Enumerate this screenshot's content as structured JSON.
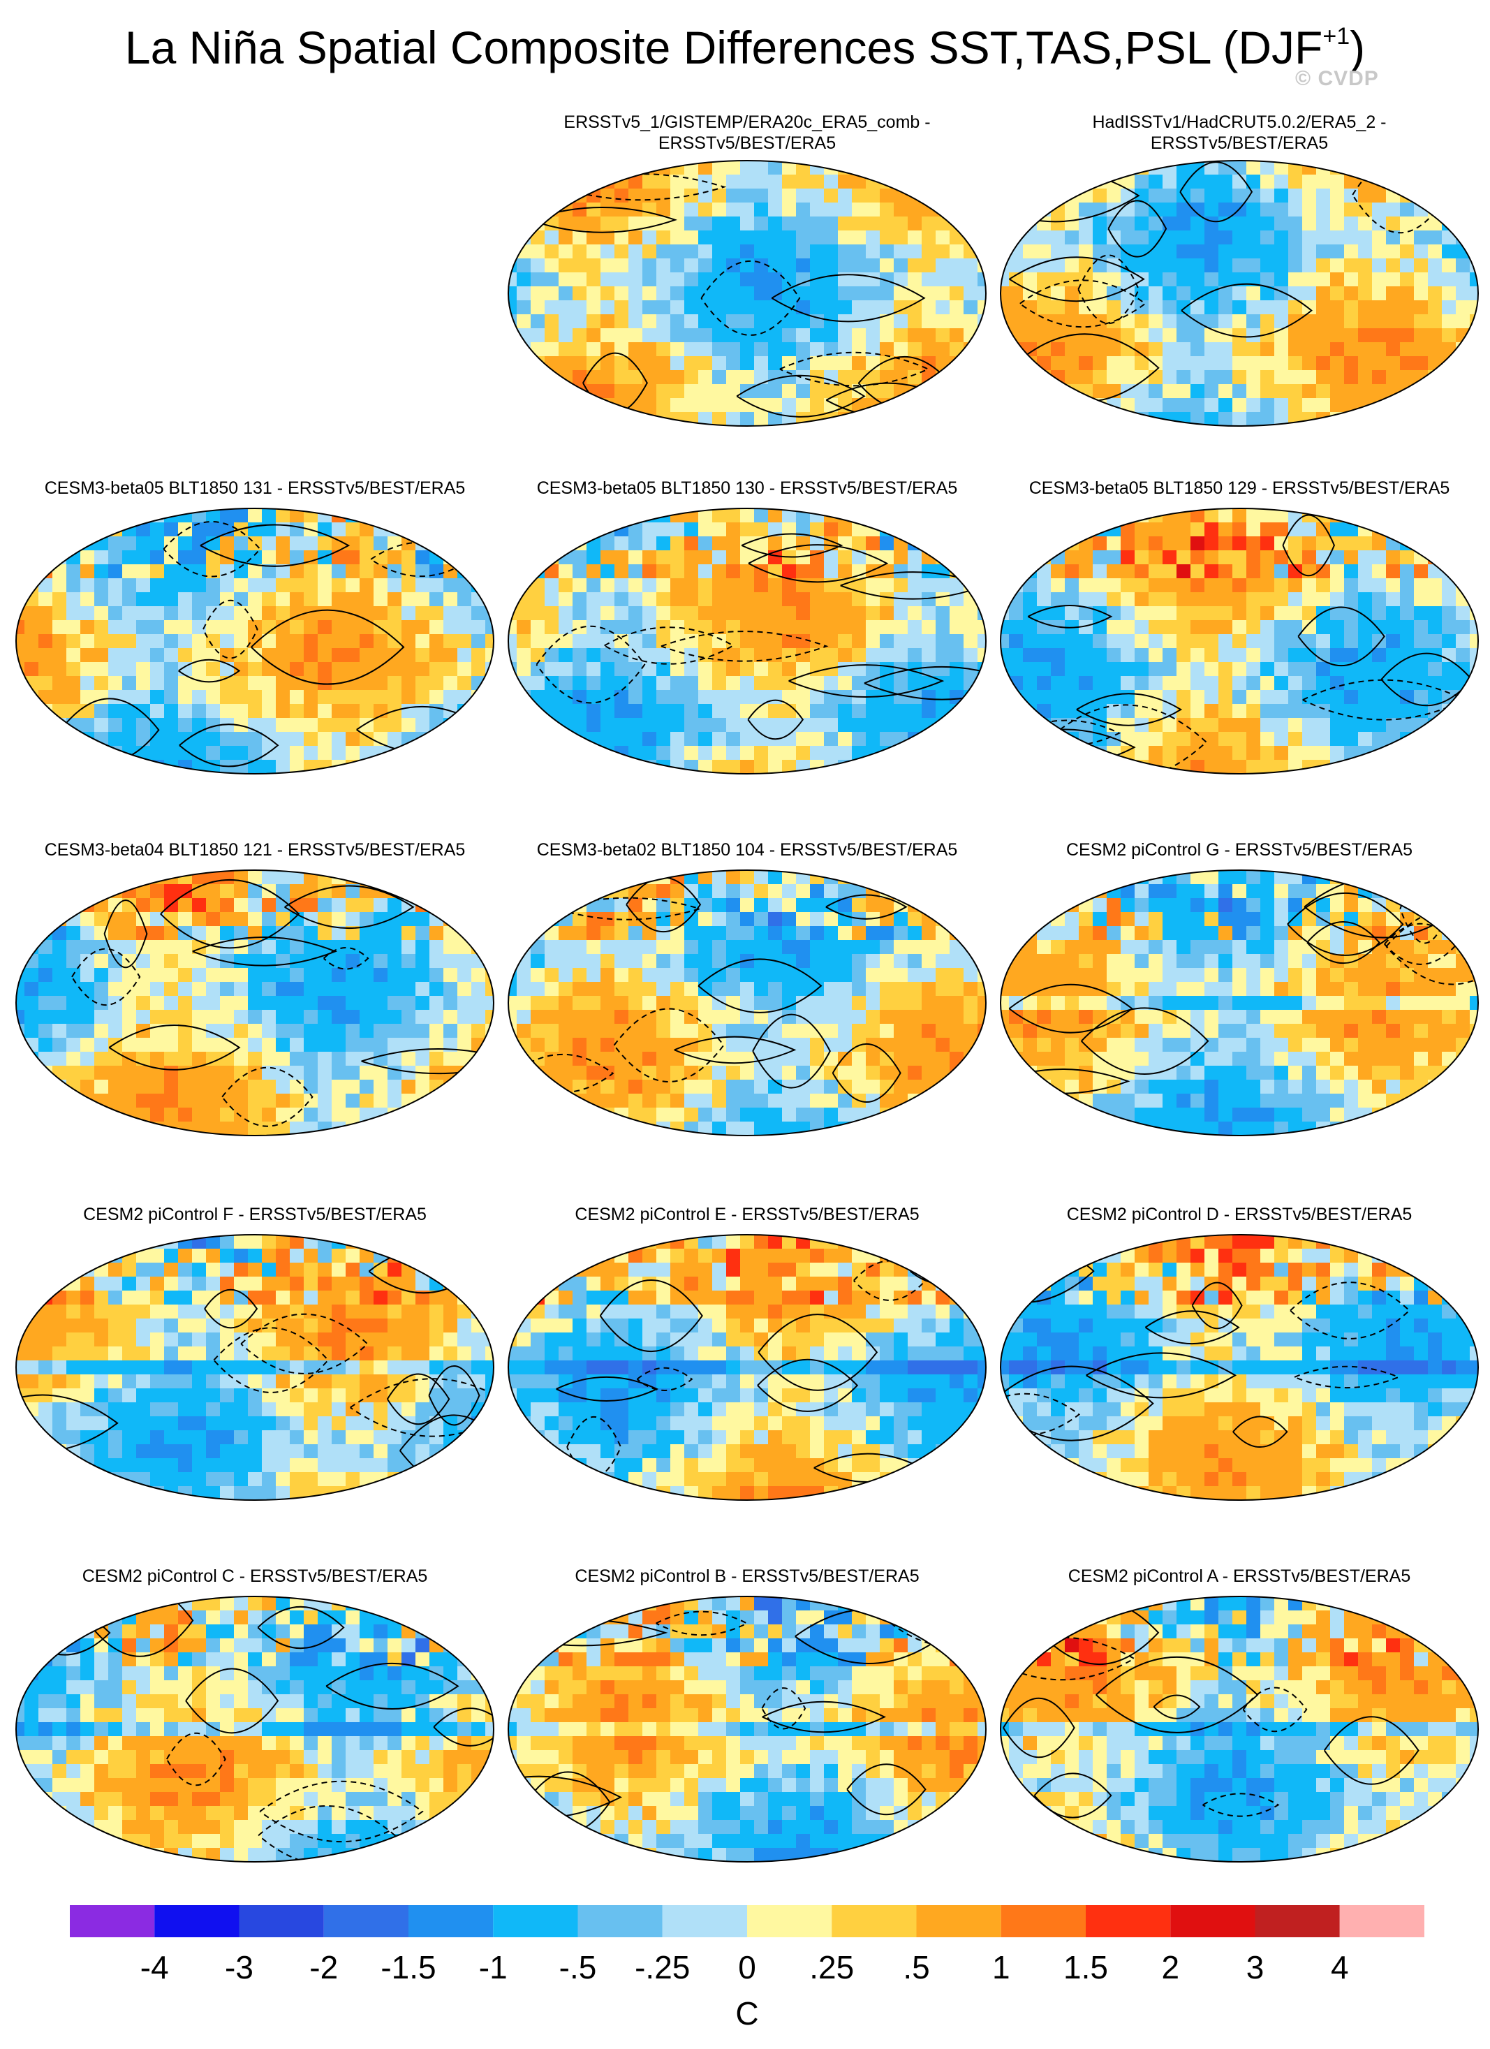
{
  "title": "La Niña Spatial Composite Differences SST,TAS,PSL (DJF",
  "title_sup": "+1",
  "title_close": ")",
  "watermark": "© CVDP",
  "panels": [
    {
      "label_lines": [
        "ERSSTv5_1/GISTEMP/ERA20c_ERA5_comb -",
        "ERSSTv5/BEST/ERA5"
      ]
    },
    {
      "label_lines": [
        "HadISSTv1/HadCRUT5.0.2/ERA5_2 -",
        "ERSSTv5/BEST/ERA5"
      ]
    },
    {
      "label_lines": [
        "CESM3-beta05 BLT1850 131 - ERSSTv5/BEST/ERA5"
      ]
    },
    {
      "label_lines": [
        "CESM3-beta05 BLT1850 130 - ERSSTv5/BEST/ERA5"
      ]
    },
    {
      "label_lines": [
        "CESM3-beta05 BLT1850 129 - ERSSTv5/BEST/ERA5"
      ]
    },
    {
      "label_lines": [
        "CESM3-beta04 BLT1850 121 - ERSSTv5/BEST/ERA5"
      ]
    },
    {
      "label_lines": [
        "CESM3-beta02 BLT1850 104 - ERSSTv5/BEST/ERA5"
      ]
    },
    {
      "label_lines": [
        "CESM2 piControl G - ERSSTv5/BEST/ERA5"
      ]
    },
    {
      "label_lines": [
        "CESM2 piControl F - ERSSTv5/BEST/ERA5"
      ]
    },
    {
      "label_lines": [
        "CESM2 piControl E - ERSSTv5/BEST/ERA5"
      ]
    },
    {
      "label_lines": [
        "CESM2 piControl D - ERSSTv5/BEST/ERA5"
      ]
    },
    {
      "label_lines": [
        "CESM2 piControl C - ERSSTv5/BEST/ERA5"
      ]
    },
    {
      "label_lines": [
        "CESM2 piControl B - ERSSTv5/BEST/ERA5"
      ]
    },
    {
      "label_lines": [
        "CESM2 piControl A - ERSSTv5/BEST/ERA5"
      ]
    }
  ],
  "colorbar": {
    "tick_labels": [
      "-4",
      "-3",
      "-2",
      "-1.5",
      "-1",
      "-.5",
      "-.25",
      "0",
      ".25",
      ".5",
      "1",
      "1.5",
      "2",
      "3",
      "4"
    ],
    "colors": [
      "#8b2be2",
      "#1010f0",
      "#2848e0",
      "#3070e8",
      "#2090f0",
      "#10b8f8",
      "#68c0f0",
      "#b0e0f8",
      "#fff8a0",
      "#ffd040",
      "#ffa820",
      "#ff7818",
      "#ff3010",
      "#e01010",
      "#c02020",
      "#ffb0b0"
    ],
    "units": "C"
  },
  "chart_data": {
    "type": "heatmap",
    "title": "La Niña Spatial Composite Differences SST,TAS,PSL (DJF+1)",
    "fields": [
      "SST",
      "TAS",
      "PSL"
    ],
    "season": "DJF+1",
    "projection": "global map (Robinson-like)",
    "reference": "ERSSTv5/BEST/ERA5",
    "panels": [
      "ERSSTv5_1/GISTEMP/ERA20c_ERA5_comb - ERSSTv5/BEST/ERA5",
      "HadISSTv1/HadCRUT5.0.2/ERA5_2 - ERSSTv5/BEST/ERA5",
      "CESM3-beta05 BLT1850 131 - ERSSTv5/BEST/ERA5",
      "CESM3-beta05 BLT1850 130 - ERSSTv5/BEST/ERA5",
      "CESM3-beta05 BLT1850 129 - ERSSTv5/BEST/ERA5",
      "CESM3-beta04 BLT1850 121 - ERSSTv5/BEST/ERA5",
      "CESM3-beta02 BLT1850 104 - ERSSTv5/BEST/ERA5",
      "CESM2 piControl G - ERSSTv5/BEST/ERA5",
      "CESM2 piControl F - ERSSTv5/BEST/ERA5",
      "CESM2 piControl E - ERSSTv5/BEST/ERA5",
      "CESM2 piControl D - ERSSTv5/BEST/ERA5",
      "CESM2 piControl C - ERSSTv5/BEST/ERA5",
      "CESM2 piControl B - ERSSTv5/BEST/ERA5",
      "CESM2 piControl A - ERSSTv5/BEST/ERA5"
    ],
    "color_levels": [
      -4,
      -3,
      -2,
      -1.5,
      -1,
      -0.5,
      -0.25,
      0,
      0.25,
      0.5,
      1,
      1.5,
      2,
      3,
      4
    ],
    "units": "C",
    "contours": "PSL differences (solid positive, dashed negative)"
  }
}
